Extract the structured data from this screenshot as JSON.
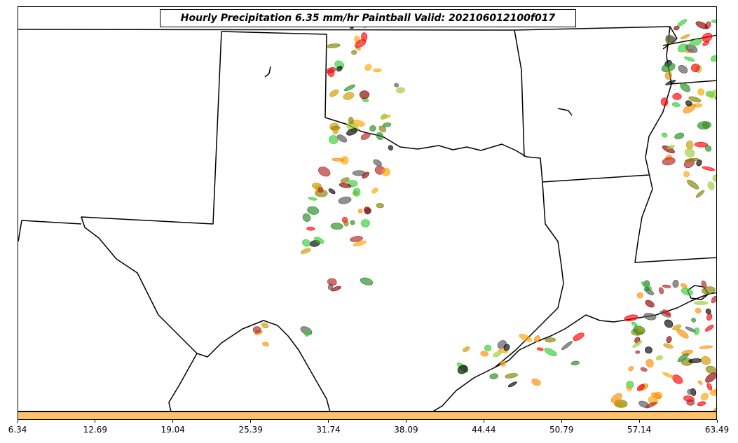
{
  "title": "Hourly Precipitation 6.35 mm/hr Paintball Valid: 202106012100f017",
  "colorbar": {
    "color": "#ffc266",
    "ticks": [
      "6.34",
      "12.69",
      "19.04",
      "25.39",
      "31.74",
      "38.09",
      "44.44",
      "50.79",
      "57.14",
      "63.49"
    ]
  },
  "member_colors": [
    "#228b22",
    "#32cd32",
    "#ff0000",
    "#ff8c00",
    "#ffa500",
    "#8b0000",
    "#808000",
    "#000000",
    "#555555",
    "#b22222",
    "#9acd32",
    "#cc9900"
  ],
  "map": {
    "boundary_color": "#000000"
  }
}
